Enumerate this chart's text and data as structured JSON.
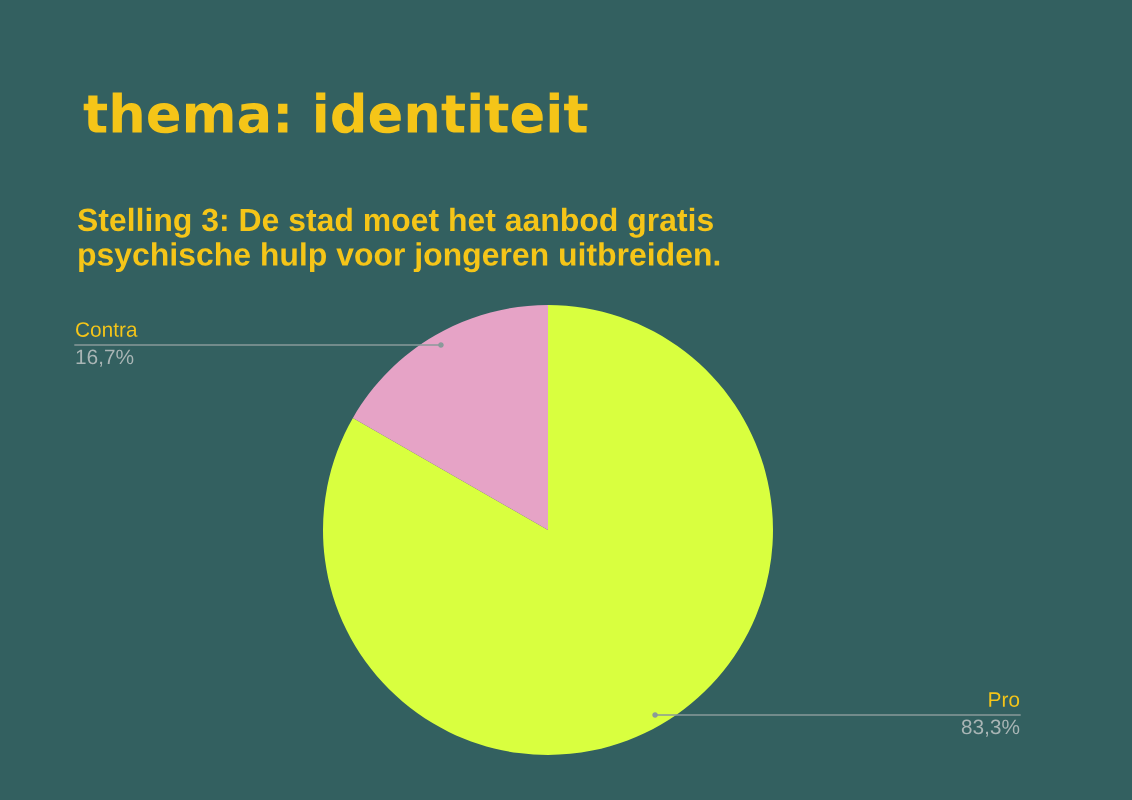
{
  "chart_data": {
    "type": "pie",
    "title": "thema: identiteit",
    "subtitle": "Stelling 3: De stad moet het aanbod gratis psychische hulp voor jongeren uitbreiden.",
    "categories": [
      "Pro",
      "Contra"
    ],
    "values": [
      83.3,
      16.7
    ],
    "colors": [
      "#d9ff3f",
      "#e6a3c6"
    ],
    "value_labels": [
      "83,3%",
      "16,7%"
    ]
  }
}
